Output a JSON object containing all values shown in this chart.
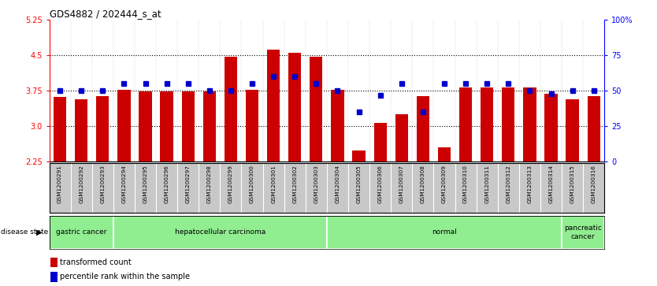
{
  "title": "GDS4882 / 202444_s_at",
  "samples": [
    "GSM1200291",
    "GSM1200292",
    "GSM1200293",
    "GSM1200294",
    "GSM1200295",
    "GSM1200296",
    "GSM1200297",
    "GSM1200298",
    "GSM1200299",
    "GSM1200300",
    "GSM1200301",
    "GSM1200302",
    "GSM1200303",
    "GSM1200304",
    "GSM1200305",
    "GSM1200306",
    "GSM1200307",
    "GSM1200308",
    "GSM1200309",
    "GSM1200310",
    "GSM1200311",
    "GSM1200312",
    "GSM1200313",
    "GSM1200314",
    "GSM1200315",
    "GSM1200316"
  ],
  "transformed_count": [
    3.62,
    3.57,
    3.63,
    3.77,
    3.73,
    3.73,
    3.73,
    3.73,
    4.47,
    3.77,
    4.62,
    4.55,
    4.47,
    3.77,
    2.48,
    3.07,
    3.25,
    3.63,
    2.55,
    3.82,
    3.82,
    3.82,
    3.82,
    3.68,
    3.57,
    3.63
  ],
  "percentile_rank": [
    50,
    50,
    50,
    55,
    55,
    55,
    55,
    50,
    50,
    55,
    60,
    60,
    55,
    50,
    35,
    47,
    55,
    35,
    55,
    55,
    55,
    55,
    50,
    48,
    50,
    50
  ],
  "groups": [
    {
      "label": "gastric cancer",
      "start": 0,
      "end": 2
    },
    {
      "label": "hepatocellular carcinoma",
      "start": 3,
      "end": 12
    },
    {
      "label": "normal",
      "start": 13,
      "end": 23
    },
    {
      "label": "pancreatic\ncancer",
      "start": 24,
      "end": 25
    }
  ],
  "ylim_left": [
    2.25,
    5.25
  ],
  "yticks_left": [
    2.25,
    3.0,
    3.75,
    4.5,
    5.25
  ],
  "ylim_right": [
    0,
    100
  ],
  "yticks_right": [
    0,
    25,
    50,
    75,
    100
  ],
  "bar_color": "#CC0000",
  "dot_color": "#0000CC",
  "hline_values": [
    3.0,
    3.75,
    4.5
  ],
  "group_color": "#90EE90",
  "group_border_color": "white",
  "gray_bg": "#C8C8C8"
}
